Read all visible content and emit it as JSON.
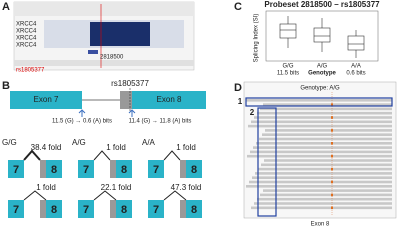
{
  "panels": {
    "a": {
      "label": "A",
      "tracks": [
        "XRCC4",
        "XRCC4",
        "XRCC4",
        "XRCC4"
      ],
      "probeset": "2818500",
      "snp": "rs1805377"
    },
    "b": {
      "label": "B",
      "snp": "rs1805377",
      "exons": [
        "Exon 7",
        "Exon 8"
      ],
      "bits": [
        "11.5 (G) → 0.6 (A) bits",
        "11.4 (G) → 11.8 (A) bits"
      ],
      "genotypes": [
        "G/G",
        "A/G",
        "A/A"
      ],
      "top_folds": [
        "38.4 fold",
        "1 fold",
        "1 fold"
      ],
      "bottom_folds": [
        "1 fold",
        "22.1 fold",
        "47.3 fold"
      ],
      "exon_short": [
        "7",
        "8"
      ]
    },
    "c": {
      "label": "C",
      "title": "Probeset 2818500 – rs1805377",
      "y_label": "Splicing Index (SI)",
      "x_label": "Genotype",
      "genotypes": [
        "G/G",
        "A/G",
        "A/A"
      ],
      "bits": [
        "11.5 bits",
        "0.6 bits"
      ]
    },
    "d": {
      "label": "D",
      "genotype": "Genotype: A/G",
      "boxes": [
        "1",
        "2"
      ],
      "exon": "Exon 8"
    }
  }
}
